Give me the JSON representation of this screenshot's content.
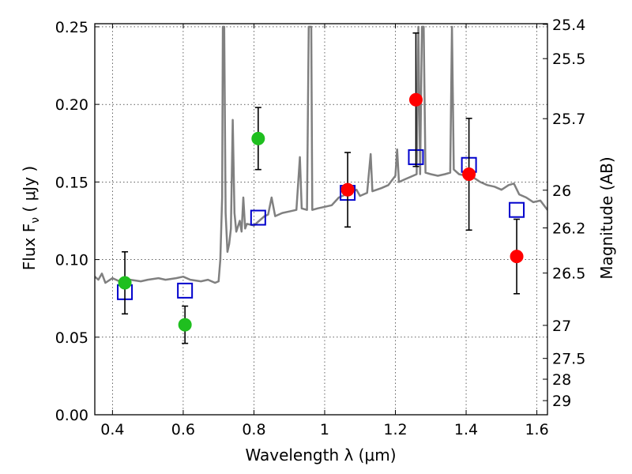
{
  "chart_data": {
    "type": "scatter",
    "xlabel": "Wavelength  λ (μm)",
    "ylabel": "Flux  F",
    "ylabel_sub": "ν",
    "ylabel_unit": "  ( μJy )",
    "y2label": "Magnitude (AB)",
    "xlim": [
      0.35,
      1.63
    ],
    "ylim": [
      0.0,
      0.252
    ],
    "grid": true,
    "x_ticks": [
      0.4,
      0.6,
      0.8,
      1.0,
      1.2,
      1.4,
      1.6
    ],
    "x_tick_labels": [
      "0.4",
      "0.6",
      "0.8",
      "1",
      "1.2",
      "1.4",
      "1.6"
    ],
    "y_ticks": [
      0.0,
      0.05,
      0.1,
      0.15,
      0.2,
      0.25
    ],
    "y_tick_labels": [
      "0.00",
      "0.05",
      "0.10",
      "0.15",
      "0.20",
      "0.25"
    ],
    "y2_ticks": [
      {
        "label": "25.4",
        "flux": 0.2516
      },
      {
        "label": "25.5",
        "flux": 0.2295
      },
      {
        "label": "25.7",
        "flux": 0.1908
      },
      {
        "label": "26",
        "flux": 0.1447
      },
      {
        "label": "26.2",
        "flux": 0.1204
      },
      {
        "label": "26.5",
        "flux": 0.0913
      },
      {
        "label": "27",
        "flux": 0.0576
      },
      {
        "label": "27.5",
        "flux": 0.0363
      },
      {
        "label": "28",
        "flux": 0.0229
      },
      {
        "label": "29",
        "flux": 0.0091
      }
    ],
    "series": [
      {
        "type": "line",
        "color": "#808080",
        "points": [
          [
            0.35,
            0.089
          ],
          [
            0.36,
            0.087
          ],
          [
            0.37,
            0.091
          ],
          [
            0.38,
            0.085
          ],
          [
            0.4,
            0.088
          ],
          [
            0.42,
            0.086
          ],
          [
            0.45,
            0.087
          ],
          [
            0.48,
            0.086
          ],
          [
            0.5,
            0.087
          ],
          [
            0.53,
            0.088
          ],
          [
            0.55,
            0.087
          ],
          [
            0.58,
            0.088
          ],
          [
            0.6,
            0.089
          ],
          [
            0.62,
            0.087
          ],
          [
            0.65,
            0.086
          ],
          [
            0.67,
            0.087
          ],
          [
            0.69,
            0.085
          ],
          [
            0.7,
            0.086
          ],
          [
            0.705,
            0.1
          ],
          [
            0.71,
            0.14
          ],
          [
            0.712,
            0.25
          ],
          [
            0.716,
            0.25
          ],
          [
            0.72,
            0.13
          ],
          [
            0.725,
            0.105
          ],
          [
            0.73,
            0.11
          ],
          [
            0.735,
            0.12
          ],
          [
            0.74,
            0.19
          ],
          [
            0.745,
            0.13
          ],
          [
            0.75,
            0.118
          ],
          [
            0.76,
            0.125
          ],
          [
            0.765,
            0.118
          ],
          [
            0.77,
            0.14
          ],
          [
            0.775,
            0.12
          ],
          [
            0.78,
            0.123
          ],
          [
            0.8,
            0.122
          ],
          [
            0.82,
            0.126
          ],
          [
            0.83,
            0.128
          ],
          [
            0.84,
            0.129
          ],
          [
            0.85,
            0.14
          ],
          [
            0.86,
            0.128
          ],
          [
            0.88,
            0.13
          ],
          [
            0.9,
            0.131
          ],
          [
            0.92,
            0.132
          ],
          [
            0.93,
            0.166
          ],
          [
            0.935,
            0.133
          ],
          [
            0.95,
            0.132
          ],
          [
            0.955,
            0.25
          ],
          [
            0.962,
            0.25
          ],
          [
            0.965,
            0.132
          ],
          [
            0.98,
            0.133
          ],
          [
            1.0,
            0.134
          ],
          [
            1.02,
            0.135
          ],
          [
            1.04,
            0.14
          ],
          [
            1.06,
            0.142
          ],
          [
            1.09,
            0.145
          ],
          [
            1.1,
            0.141
          ],
          [
            1.12,
            0.143
          ],
          [
            1.13,
            0.168
          ],
          [
            1.135,
            0.144
          ],
          [
            1.16,
            0.146
          ],
          [
            1.18,
            0.148
          ],
          [
            1.2,
            0.154
          ],
          [
            1.205,
            0.171
          ],
          [
            1.21,
            0.15
          ],
          [
            1.23,
            0.152
          ],
          [
            1.25,
            0.154
          ],
          [
            1.26,
            0.155
          ],
          [
            1.265,
            0.25
          ],
          [
            1.27,
            0.155
          ],
          [
            1.275,
            0.25
          ],
          [
            1.28,
            0.25
          ],
          [
            1.285,
            0.156
          ],
          [
            1.3,
            0.155
          ],
          [
            1.32,
            0.154
          ],
          [
            1.34,
            0.155
          ],
          [
            1.355,
            0.156
          ],
          [
            1.36,
            0.25
          ],
          [
            1.365,
            0.158
          ],
          [
            1.38,
            0.155
          ],
          [
            1.4,
            0.154
          ],
          [
            1.42,
            0.153
          ],
          [
            1.44,
            0.15
          ],
          [
            1.46,
            0.148
          ],
          [
            1.48,
            0.147
          ],
          [
            1.5,
            0.145
          ],
          [
            1.52,
            0.148
          ],
          [
            1.535,
            0.149
          ],
          [
            1.55,
            0.142
          ],
          [
            1.57,
            0.14
          ],
          [
            1.59,
            0.137
          ],
          [
            1.61,
            0.138
          ],
          [
            1.63,
            0.132
          ]
        ]
      },
      {
        "type": "scatter",
        "marker": "circle",
        "color": "#1fbf1f",
        "points": [
          {
            "x": 0.435,
            "y": 0.085,
            "err": 0.02
          },
          {
            "x": 0.605,
            "y": 0.058,
            "err": 0.012
          },
          {
            "x": 0.812,
            "y": 0.178,
            "err": 0.02
          }
        ]
      },
      {
        "type": "scatter",
        "marker": "circle",
        "color": "#ff0000",
        "points": [
          {
            "x": 1.065,
            "y": 0.145,
            "err": 0.024
          },
          {
            "x": 1.258,
            "y": 0.203,
            "err": 0.043
          },
          {
            "x": 1.408,
            "y": 0.155,
            "err": 0.036
          },
          {
            "x": 1.543,
            "y": 0.102,
            "err": 0.024
          }
        ]
      },
      {
        "type": "scatter",
        "marker": "square-open",
        "color": "#0000cc",
        "points": [
          {
            "x": 0.435,
            "y": 0.079
          },
          {
            "x": 0.605,
            "y": 0.08
          },
          {
            "x": 0.812,
            "y": 0.127
          },
          {
            "x": 1.065,
            "y": 0.143
          },
          {
            "x": 1.258,
            "y": 0.166
          },
          {
            "x": 1.408,
            "y": 0.161
          },
          {
            "x": 1.543,
            "y": 0.132
          }
        ]
      }
    ]
  }
}
